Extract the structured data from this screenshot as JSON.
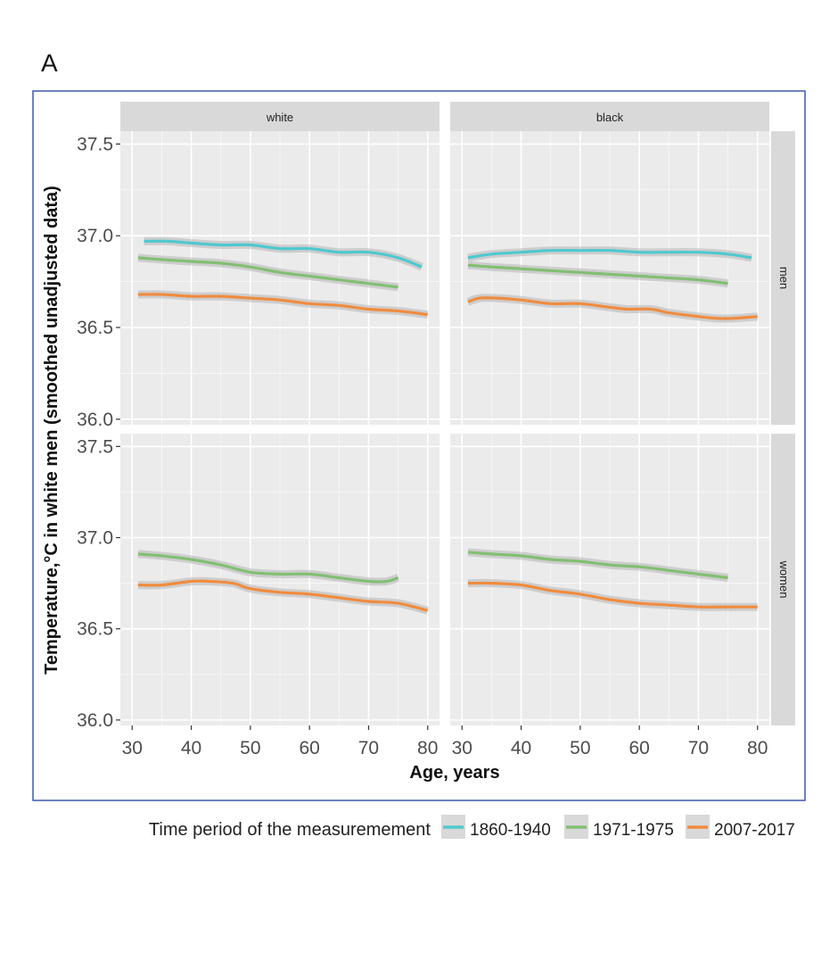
{
  "panel_label": "A",
  "chart_data": {
    "type": "line",
    "facets": {
      "columns": [
        "white",
        "black"
      ],
      "rows": [
        "men",
        "women"
      ]
    },
    "xlabel": "Age, years",
    "ylabel": "Temperature,°C in white men (smoothed unadjusted data)",
    "xlim": [
      28,
      82
    ],
    "ylim": [
      35.97,
      37.57
    ],
    "x_ticks": [
      30,
      40,
      50,
      60,
      70,
      80
    ],
    "x_tick_labels": [
      "30",
      "40",
      "50",
      "60",
      "70",
      "80"
    ],
    "y_ticks": [
      36.0,
      36.5,
      37.0,
      37.5
    ],
    "y_tick_labels": [
      "36.0",
      "36.5",
      "37.0",
      "37.5"
    ],
    "legend": {
      "title": "Time period of the measuremement",
      "position": "bottom",
      "entries": [
        {
          "label": "1860-1940",
          "color": "#4FC8CF"
        },
        {
          "label": "1971-1975",
          "color": "#82BF73"
        },
        {
          "label": "2007-2017",
          "color": "#F08C3F"
        }
      ]
    },
    "colors": {
      "panel_bg": "#EBEBEB",
      "strip_bg": "#D9D9D9",
      "grid": "#FFFFFF",
      "ci_band": "#B5B5B5",
      "frame": "#3A5BA8"
    },
    "panels": [
      {
        "column": "white",
        "row": "men",
        "series": [
          {
            "name": "1860-1940",
            "x": [
              32,
              36,
              40,
              45,
              50,
              55,
              60,
              65,
              70,
              75,
              79
            ],
            "y": [
              36.97,
              36.97,
              36.96,
              36.95,
              36.95,
              36.93,
              36.93,
              36.91,
              36.91,
              36.88,
              36.83
            ]
          },
          {
            "name": "1971-1975",
            "x": [
              31,
              35,
              40,
              45,
              50,
              55,
              60,
              65,
              70,
              75
            ],
            "y": [
              36.88,
              36.87,
              36.86,
              36.85,
              36.83,
              36.8,
              36.78,
              36.76,
              36.74,
              36.72
            ]
          },
          {
            "name": "2007-2017",
            "x": [
              31,
              35,
              40,
              45,
              50,
              55,
              60,
              65,
              70,
              75,
              80
            ],
            "y": [
              36.68,
              36.68,
              36.67,
              36.67,
              36.66,
              36.65,
              36.63,
              36.62,
              36.6,
              36.59,
              36.57
            ]
          }
        ]
      },
      {
        "column": "black",
        "row": "men",
        "series": [
          {
            "name": "1860-1940",
            "x": [
              31,
              35,
              40,
              45,
              50,
              55,
              60,
              65,
              70,
              75,
              79
            ],
            "y": [
              36.88,
              36.9,
              36.91,
              36.92,
              36.92,
              36.92,
              36.91,
              36.91,
              36.91,
              36.9,
              36.88
            ]
          },
          {
            "name": "1971-1975",
            "x": [
              31,
              35,
              40,
              45,
              50,
              55,
              60,
              65,
              70,
              75
            ],
            "y": [
              36.84,
              36.83,
              36.82,
              36.81,
              36.8,
              36.79,
              36.78,
              36.77,
              36.76,
              36.74
            ]
          },
          {
            "name": "2007-2017",
            "x": [
              31,
              33,
              36,
              40,
              45,
              50,
              55,
              58,
              62,
              65,
              70,
              73,
              76,
              80
            ],
            "y": [
              36.64,
              36.66,
              36.66,
              36.65,
              36.63,
              36.63,
              36.61,
              36.6,
              36.6,
              36.58,
              36.56,
              36.55,
              36.55,
              36.56
            ]
          }
        ]
      },
      {
        "column": "white",
        "row": "women",
        "series": [
          {
            "name": "1971-1975",
            "x": [
              31,
              35,
              40,
              45,
              50,
              55,
              60,
              65,
              70,
              73,
              75
            ],
            "y": [
              36.91,
              36.9,
              36.88,
              36.85,
              36.81,
              36.8,
              36.8,
              36.78,
              36.76,
              36.76,
              36.78
            ]
          },
          {
            "name": "2007-2017",
            "x": [
              31,
              35,
              40,
              43,
              47,
              50,
              55,
              60,
              65,
              70,
              75,
              80
            ],
            "y": [
              36.74,
              36.74,
              36.76,
              36.76,
              36.75,
              36.72,
              36.7,
              36.69,
              36.67,
              36.65,
              36.64,
              36.6
            ]
          }
        ]
      },
      {
        "column": "black",
        "row": "women",
        "series": [
          {
            "name": "1971-1975",
            "x": [
              31,
              35,
              40,
              45,
              50,
              55,
              60,
              65,
              70,
              75
            ],
            "y": [
              36.92,
              36.91,
              36.9,
              36.88,
              36.87,
              36.85,
              36.84,
              36.82,
              36.8,
              36.78
            ]
          },
          {
            "name": "2007-2017",
            "x": [
              31,
              35,
              40,
              45,
              50,
              55,
              60,
              65,
              70,
              75,
              80
            ],
            "y": [
              36.75,
              36.75,
              36.74,
              36.71,
              36.69,
              36.66,
              36.64,
              36.63,
              36.62,
              36.62,
              36.62
            ]
          }
        ]
      }
    ]
  }
}
